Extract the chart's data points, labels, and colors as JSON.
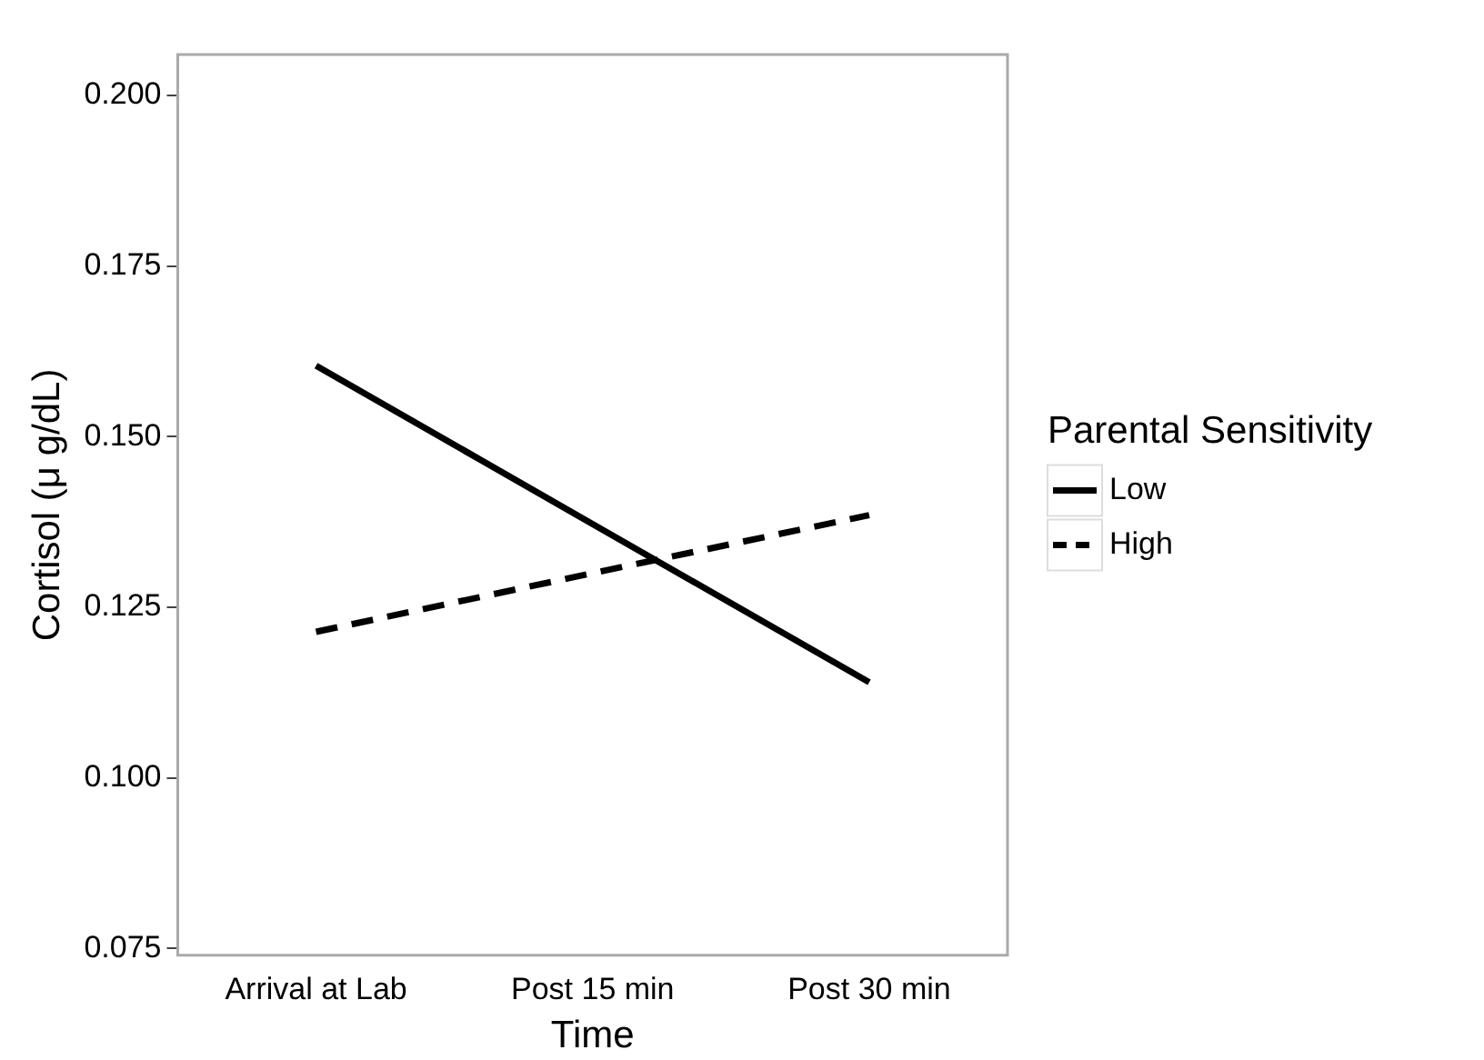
{
  "chart_data": {
    "type": "line",
    "xlabel": "Time",
    "ylabel": "Cortisol (μ g/dL)",
    "legend_title": "Parental Sensitivity",
    "legend": "right",
    "categories": [
      "Arrival at Lab",
      "Post 15 min",
      "Post 30 min"
    ],
    "series": [
      {
        "name": "Low",
        "color": "#000000",
        "values": [
          0.1604,
          0.1372,
          0.114
        ],
        "line_style": "solid"
      },
      {
        "name": "High",
        "color": "#000000",
        "values": [
          0.1214,
          0.13,
          0.1385
        ],
        "line_style": "dashed"
      }
    ],
    "ylim": [
      0.074,
      0.206
    ],
    "yticks": [
      {
        "value": 0.075,
        "label": "0.075"
      },
      {
        "value": 0.1,
        "label": "0.100"
      },
      {
        "value": 0.125,
        "label": "0.125"
      },
      {
        "value": 0.15,
        "label": "0.150"
      },
      {
        "value": 0.175,
        "label": "0.175"
      },
      {
        "value": 0.2,
        "label": "0.200"
      }
    ],
    "grid": false,
    "marker": "none"
  }
}
